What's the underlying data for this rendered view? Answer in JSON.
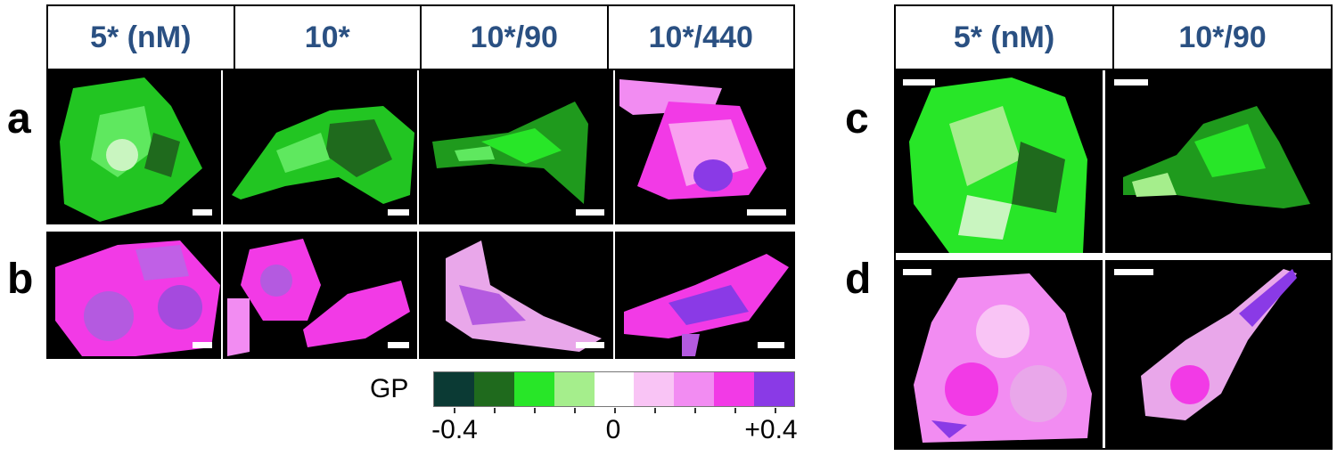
{
  "left_headers": [
    "5* (nM)",
    "10*",
    "10*/90",
    "10*/440"
  ],
  "right_headers": [
    "5* (nM)",
    "10*/90"
  ],
  "panel_labels": {
    "a": "a",
    "b": "b",
    "c": "c",
    "d": "d"
  },
  "colorbar": {
    "label": "GP",
    "colors": [
      "#0b3a34",
      "#1f6a1d",
      "#28e628",
      "#a5ee8c",
      "#ffffff",
      "#f9c4f5",
      "#f28cf2",
      "#f23ae6",
      "#8a3ae6"
    ],
    "tick_labels": [
      "-0.4",
      "0",
      "+0.4"
    ]
  },
  "image_descriptions_visible": {
    "a_row": "green",
    "b_row": "magenta",
    "c_row": "green",
    "d_row": "magenta"
  }
}
